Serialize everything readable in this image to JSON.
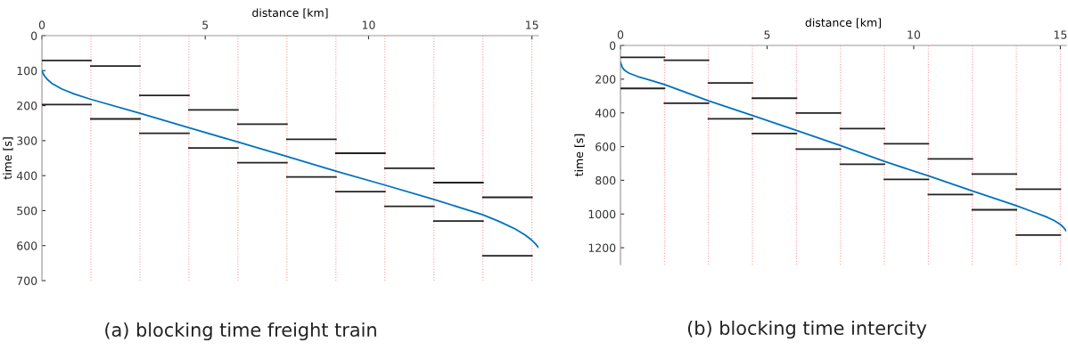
{
  "chart_data": [
    {
      "type": "line",
      "xlabel": "distance [km]",
      "ylabel": "time [s]",
      "xlim": [
        0,
        15.2
      ],
      "xticks": [
        0,
        5,
        10,
        15
      ],
      "ylim": [
        700,
        0
      ],
      "yticks": [
        0,
        100,
        200,
        300,
        400,
        500,
        600,
        700
      ],
      "grid": false,
      "legend": false,
      "marker": "none",
      "line_style": "solid",
      "annotations": [
        "(a) blocking time freight train"
      ],
      "ref_lines": [
        {
          "axis": "x",
          "value": 0,
          "color": "#ff9999",
          "line_style": "dotted"
        },
        {
          "axis": "x",
          "value": 1.5,
          "color": "#ff9999",
          "line_style": "dotted"
        },
        {
          "axis": "x",
          "value": 3,
          "color": "#ff9999",
          "line_style": "dotted"
        },
        {
          "axis": "x",
          "value": 4.5,
          "color": "#ff9999",
          "line_style": "dotted"
        },
        {
          "axis": "x",
          "value": 6,
          "color": "#ff9999",
          "line_style": "dotted"
        },
        {
          "axis": "x",
          "value": 7.5,
          "color": "#ff9999",
          "line_style": "dotted"
        },
        {
          "axis": "x",
          "value": 9,
          "color": "#ff9999",
          "line_style": "dotted"
        },
        {
          "axis": "x",
          "value": 10.5,
          "color": "#ff9999",
          "line_style": "dotted"
        },
        {
          "axis": "x",
          "value": 12,
          "color": "#ff9999",
          "line_style": "dotted"
        },
        {
          "axis": "x",
          "value": 13.5,
          "color": "#ff9999",
          "line_style": "dotted"
        },
        {
          "axis": "x",
          "value": 15,
          "color": "#ff9999",
          "line_style": "dotted"
        }
      ],
      "series": [
        {
          "color": "#0072bd",
          "x": [
            0,
            0.05,
            0.1,
            0.2,
            0.3,
            0.6,
            1,
            1.5,
            3,
            4.5,
            6,
            7.5,
            9,
            10.5,
            12,
            13.5,
            14,
            14.5,
            14.8,
            15,
            15.1,
            15.2
          ],
          "values": [
            100,
            111,
            118,
            128,
            136,
            152,
            167,
            182,
            222,
            263,
            304,
            345,
            387,
            427,
            468,
            512,
            531,
            553,
            570,
            585,
            594,
            605
          ]
        },
        {
          "color": "#222222",
          "x": [
            0,
            1.5
          ],
          "values": [
            71,
            71
          ]
        },
        {
          "color": "#222222",
          "x": [
            1.5,
            3
          ],
          "values": [
            87,
            87
          ]
        },
        {
          "color": "#222222",
          "x": [
            3,
            4.5
          ],
          "values": [
            171,
            171
          ]
        },
        {
          "color": "#222222",
          "x": [
            4.5,
            6
          ],
          "values": [
            212,
            212
          ]
        },
        {
          "color": "#222222",
          "x": [
            6,
            7.5
          ],
          "values": [
            253,
            253
          ]
        },
        {
          "color": "#222222",
          "x": [
            7.5,
            9
          ],
          "values": [
            296,
            296
          ]
        },
        {
          "color": "#222222",
          "x": [
            9,
            10.5
          ],
          "values": [
            336,
            336
          ]
        },
        {
          "color": "#222222",
          "x": [
            10.5,
            12
          ],
          "values": [
            379,
            379
          ]
        },
        {
          "color": "#222222",
          "x": [
            12,
            13.5
          ],
          "values": [
            420,
            420
          ]
        },
        {
          "color": "#222222",
          "x": [
            13.5,
            15
          ],
          "values": [
            462,
            462
          ]
        },
        {
          "color": "#222222",
          "x": [
            0,
            1.5
          ],
          "values": [
            197,
            197
          ]
        },
        {
          "color": "#222222",
          "x": [
            1.5,
            3
          ],
          "values": [
            238,
            238
          ]
        },
        {
          "color": "#222222",
          "x": [
            3,
            4.5
          ],
          "values": [
            279,
            279
          ]
        },
        {
          "color": "#222222",
          "x": [
            4.5,
            6
          ],
          "values": [
            321,
            321
          ]
        },
        {
          "color": "#222222",
          "x": [
            6,
            7.5
          ],
          "values": [
            363,
            363
          ]
        },
        {
          "color": "#222222",
          "x": [
            7.5,
            9
          ],
          "values": [
            404,
            404
          ]
        },
        {
          "color": "#222222",
          "x": [
            9,
            10.5
          ],
          "values": [
            446,
            446
          ]
        },
        {
          "color": "#222222",
          "x": [
            10.5,
            12
          ],
          "values": [
            488,
            488
          ]
        },
        {
          "color": "#222222",
          "x": [
            12,
            13.5
          ],
          "values": [
            530,
            530
          ]
        },
        {
          "color": "#222222",
          "x": [
            13.5,
            15
          ],
          "values": [
            629,
            629
          ]
        }
      ]
    },
    {
      "type": "line",
      "xlabel": "distance [km]",
      "ylabel": "time [s]",
      "xlim": [
        0,
        15.2
      ],
      "xticks": [
        0,
        5,
        10,
        15
      ],
      "ylim": [
        1300,
        0
      ],
      "yticks": [
        0,
        200,
        400,
        600,
        800,
        1000,
        1200
      ],
      "grid": false,
      "legend": false,
      "marker": "none",
      "line_style": "solid",
      "annotations": [
        "(b) blocking time intercity"
      ],
      "ref_lines": [
        {
          "axis": "x",
          "value": 0,
          "color": "#ff9999",
          "line_style": "dotted"
        },
        {
          "axis": "x",
          "value": 1.5,
          "color": "#ff9999",
          "line_style": "dotted"
        },
        {
          "axis": "x",
          "value": 3,
          "color": "#ff9999",
          "line_style": "dotted"
        },
        {
          "axis": "x",
          "value": 4.5,
          "color": "#ff9999",
          "line_style": "dotted"
        },
        {
          "axis": "x",
          "value": 6,
          "color": "#ff9999",
          "line_style": "dotted"
        },
        {
          "axis": "x",
          "value": 7.5,
          "color": "#ff9999",
          "line_style": "dotted"
        },
        {
          "axis": "x",
          "value": 9,
          "color": "#ff9999",
          "line_style": "dotted"
        },
        {
          "axis": "x",
          "value": 10.5,
          "color": "#ff9999",
          "line_style": "dotted"
        },
        {
          "axis": "x",
          "value": 12,
          "color": "#ff9999",
          "line_style": "dotted"
        },
        {
          "axis": "x",
          "value": 13.5,
          "color": "#ff9999",
          "line_style": "dotted"
        },
        {
          "axis": "x",
          "value": 15,
          "color": "#ff9999",
          "line_style": "dotted"
        }
      ],
      "series": [
        {
          "color": "#0072bd",
          "x": [
            0,
            0.05,
            0.1,
            0.2,
            0.3,
            0.6,
            1,
            1.5,
            3,
            4.5,
            6,
            7.5,
            9,
            10.5,
            12,
            13.5,
            14,
            14.5,
            14.8,
            15,
            15.1,
            15.2
          ],
          "values": [
            100,
            125,
            140,
            155,
            165,
            185,
            205,
            232,
            328,
            416,
            504,
            594,
            688,
            774,
            863,
            951,
            983,
            1015,
            1040,
            1062,
            1078,
            1100
          ]
        },
        {
          "color": "#222222",
          "x": [
            0,
            1.5
          ],
          "values": [
            71,
            71
          ]
        },
        {
          "color": "#222222",
          "x": [
            1.5,
            3
          ],
          "values": [
            88,
            88
          ]
        },
        {
          "color": "#222222",
          "x": [
            3,
            4.5
          ],
          "values": [
            223,
            223
          ]
        },
        {
          "color": "#222222",
          "x": [
            4.5,
            6
          ],
          "values": [
            313,
            313
          ]
        },
        {
          "color": "#222222",
          "x": [
            6,
            7.5
          ],
          "values": [
            401,
            401
          ]
        },
        {
          "color": "#222222",
          "x": [
            7.5,
            9
          ],
          "values": [
            493,
            493
          ]
        },
        {
          "color": "#222222",
          "x": [
            9,
            10.5
          ],
          "values": [
            583,
            583
          ]
        },
        {
          "color": "#222222",
          "x": [
            10.5,
            12
          ],
          "values": [
            673,
            673
          ]
        },
        {
          "color": "#222222",
          "x": [
            12,
            13.5
          ],
          "values": [
            763,
            763
          ]
        },
        {
          "color": "#222222",
          "x": [
            13.5,
            15
          ],
          "values": [
            853,
            853
          ]
        },
        {
          "color": "#222222",
          "x": [
            0,
            1.5
          ],
          "values": [
            255,
            255
          ]
        },
        {
          "color": "#222222",
          "x": [
            1.5,
            3
          ],
          "values": [
            343,
            343
          ]
        },
        {
          "color": "#222222",
          "x": [
            3,
            4.5
          ],
          "values": [
            435,
            435
          ]
        },
        {
          "color": "#222222",
          "x": [
            4.5,
            6
          ],
          "values": [
            523,
            523
          ]
        },
        {
          "color": "#222222",
          "x": [
            6,
            7.5
          ],
          "values": [
            615,
            615
          ]
        },
        {
          "color": "#222222",
          "x": [
            7.5,
            9
          ],
          "values": [
            705,
            705
          ]
        },
        {
          "color": "#222222",
          "x": [
            9,
            10.5
          ],
          "values": [
            795,
            795
          ]
        },
        {
          "color": "#222222",
          "x": [
            10.5,
            12
          ],
          "values": [
            885,
            885
          ]
        },
        {
          "color": "#222222",
          "x": [
            12,
            13.5
          ],
          "values": [
            975,
            975
          ]
        },
        {
          "color": "#222222",
          "x": [
            13.5,
            15
          ],
          "values": [
            1125,
            1125
          ]
        }
      ]
    }
  ]
}
